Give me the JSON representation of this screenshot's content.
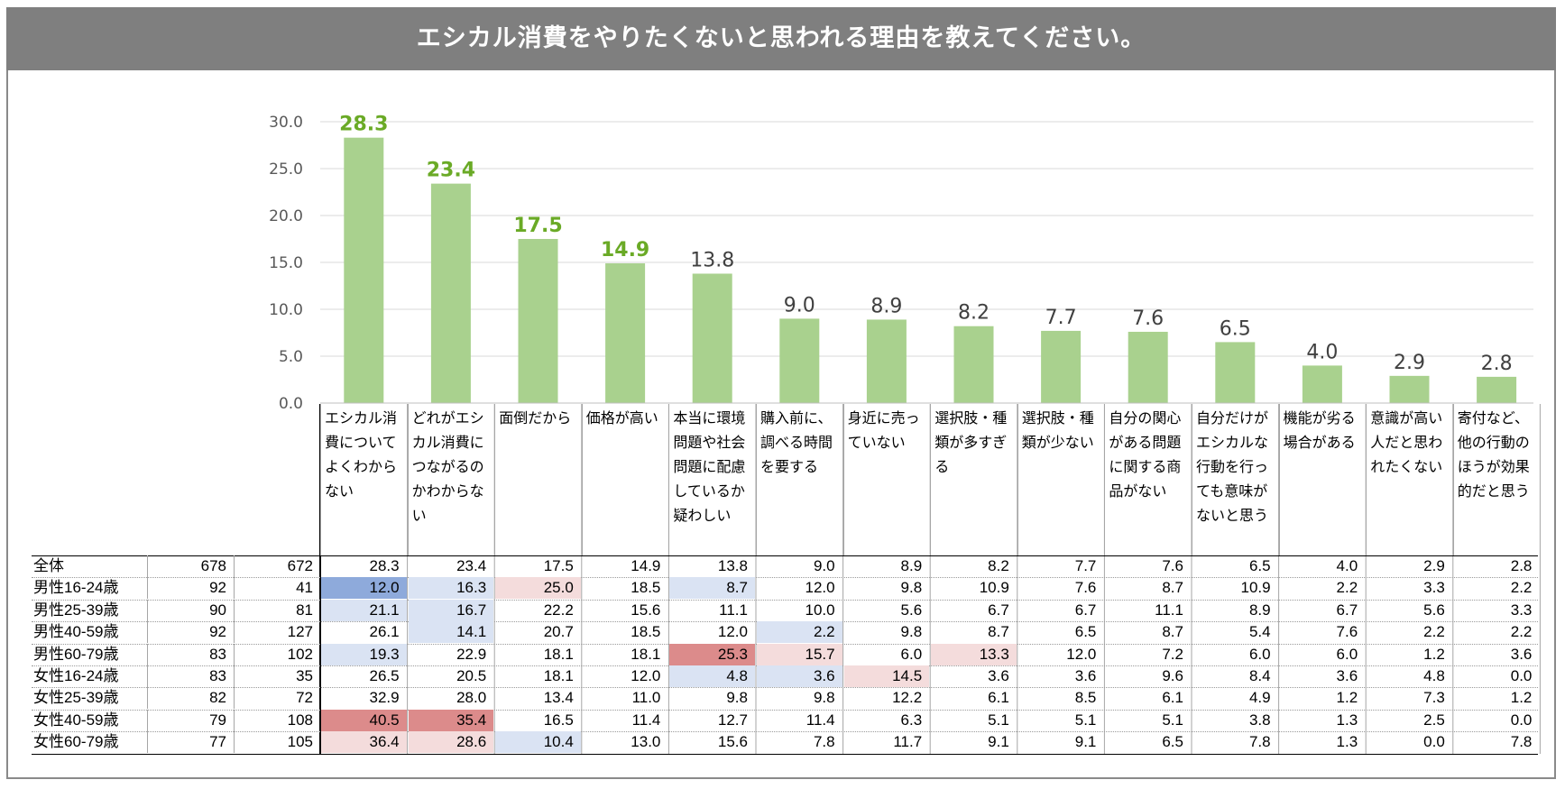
{
  "page": {
    "title": "エシカル消費をやりたくないと思われる理由を教えてください。"
  },
  "chart_data": {
    "type": "bar",
    "title": "エシカル消費をやりたくないと思われる理由を教えてください。",
    "ylim": [
      0,
      30
    ],
    "yticks": [
      "0.0",
      "5.0",
      "10.0",
      "15.0",
      "20.0",
      "25.0",
      "30.0"
    ],
    "grid": true,
    "bar_color": "#a9d18e",
    "highlight_label_color": "#6aaa26",
    "highlight_count": 4,
    "categories": [
      "エシカル消費についてよくわからない",
      "どれがエシカル消費につながるのかわからない",
      "面倒だから",
      "価格が高い",
      "本当に環境問題や社会問題に配慮しているか疑わしい",
      "購入前に、調べる時間を要する",
      "身近に売っていない",
      "選択肢・種類が多すぎる",
      "選択肢・種類が少ない",
      "自分の関心がある問題に関する商品がない",
      "自分だけがエシカルな行動を行っても意味がないと思う",
      "機能が劣る場合がある",
      "意識が高い人だと思われたくない",
      "寄付など、他の行動のほうが効果的だと思う"
    ],
    "values": [
      28.3,
      23.4,
      17.5,
      14.9,
      13.8,
      9.0,
      8.9,
      8.2,
      7.7,
      7.6,
      6.5,
      4.0,
      2.9,
      2.8
    ],
    "value_labels": [
      "28.3",
      "23.4",
      "17.5",
      "14.9",
      "13.8",
      "9.0",
      "8.9",
      "8.2",
      "7.7",
      "7.6",
      "6.5",
      "4.0",
      "2.9",
      "2.8"
    ]
  },
  "table": {
    "colors": {
      "blue_strong": "#8eaadb",
      "blue_light": "#dae3f3",
      "red_strong": "#dc8b8b",
      "red_light": "#f4dcdc"
    },
    "rows": [
      {
        "label": "全体",
        "n1": "678",
        "n2": "672",
        "cells": [
          "28.3",
          "23.4",
          "17.5",
          "14.9",
          "13.8",
          "9.0",
          "8.9",
          "8.2",
          "7.7",
          "7.6",
          "6.5",
          "4.0",
          "2.9",
          "2.8"
        ],
        "shade": [
          "",
          "",
          "",
          "",
          "",
          "",
          "",
          "",
          "",
          "",
          "",
          "",
          "",
          ""
        ]
      },
      {
        "label": "男性16-24歳",
        "n1": "92",
        "n2": "41",
        "cells": [
          "12.0",
          "16.3",
          "25.0",
          "18.5",
          "8.7",
          "12.0",
          "9.8",
          "10.9",
          "7.6",
          "8.7",
          "10.9",
          "2.2",
          "3.3",
          "2.2"
        ],
        "shade": [
          "blue_strong",
          "blue_light",
          "red_light",
          "",
          "blue_light",
          "",
          "",
          "",
          "",
          "",
          "",
          "",
          "",
          ""
        ]
      },
      {
        "label": "男性25-39歳",
        "n1": "90",
        "n2": "81",
        "cells": [
          "21.1",
          "16.7",
          "22.2",
          "15.6",
          "11.1",
          "10.0",
          "5.6",
          "6.7",
          "6.7",
          "11.1",
          "8.9",
          "6.7",
          "5.6",
          "3.3"
        ],
        "shade": [
          "blue_light",
          "blue_light",
          "",
          "",
          "",
          "",
          "",
          "",
          "",
          "",
          "",
          "",
          "",
          ""
        ]
      },
      {
        "label": "男性40-59歳",
        "n1": "92",
        "n2": "127",
        "cells": [
          "26.1",
          "14.1",
          "20.7",
          "18.5",
          "12.0",
          "2.2",
          "9.8",
          "8.7",
          "6.5",
          "8.7",
          "5.4",
          "7.6",
          "2.2",
          "2.2"
        ],
        "shade": [
          "",
          "blue_light",
          "",
          "",
          "",
          "blue_light",
          "",
          "",
          "",
          "",
          "",
          "",
          "",
          ""
        ]
      },
      {
        "label": "男性60-79歳",
        "n1": "83",
        "n2": "102",
        "cells": [
          "19.3",
          "22.9",
          "18.1",
          "18.1",
          "25.3",
          "15.7",
          "6.0",
          "13.3",
          "12.0",
          "7.2",
          "6.0",
          "6.0",
          "1.2",
          "3.6"
        ],
        "shade": [
          "blue_light",
          "",
          "",
          "",
          "red_strong",
          "red_light",
          "",
          "red_light",
          "",
          "",
          "",
          "",
          "",
          ""
        ]
      },
      {
        "label": "女性16-24歳",
        "n1": "83",
        "n2": "35",
        "cells": [
          "26.5",
          "20.5",
          "18.1",
          "12.0",
          "4.8",
          "3.6",
          "14.5",
          "3.6",
          "3.6",
          "9.6",
          "8.4",
          "3.6",
          "4.8",
          "0.0"
        ],
        "shade": [
          "",
          "",
          "",
          "",
          "blue_light",
          "blue_light",
          "red_light",
          "",
          "",
          "",
          "",
          "",
          "",
          ""
        ]
      },
      {
        "label": "女性25-39歳",
        "n1": "82",
        "n2": "72",
        "cells": [
          "32.9",
          "28.0",
          "13.4",
          "11.0",
          "9.8",
          "9.8",
          "12.2",
          "6.1",
          "8.5",
          "6.1",
          "4.9",
          "1.2",
          "7.3",
          "1.2"
        ],
        "shade": [
          "",
          "",
          "",
          "",
          "",
          "",
          "",
          "",
          "",
          "",
          "",
          "",
          "",
          ""
        ]
      },
      {
        "label": "女性40-59歳",
        "n1": "79",
        "n2": "108",
        "cells": [
          "40.5",
          "35.4",
          "16.5",
          "11.4",
          "12.7",
          "11.4",
          "6.3",
          "5.1",
          "5.1",
          "5.1",
          "3.8",
          "1.3",
          "2.5",
          "0.0"
        ],
        "shade": [
          "red_strong",
          "red_strong",
          "",
          "",
          "",
          "",
          "",
          "",
          "",
          "",
          "",
          "",
          "",
          ""
        ]
      },
      {
        "label": "女性60-79歳",
        "n1": "77",
        "n2": "105",
        "cells": [
          "36.4",
          "28.6",
          "10.4",
          "13.0",
          "15.6",
          "7.8",
          "11.7",
          "9.1",
          "9.1",
          "6.5",
          "7.8",
          "1.3",
          "0.0",
          "7.8"
        ],
        "shade": [
          "red_light",
          "red_light",
          "blue_light",
          "",
          "",
          "",
          "",
          "",
          "",
          "",
          "",
          "",
          "",
          ""
        ]
      }
    ]
  }
}
